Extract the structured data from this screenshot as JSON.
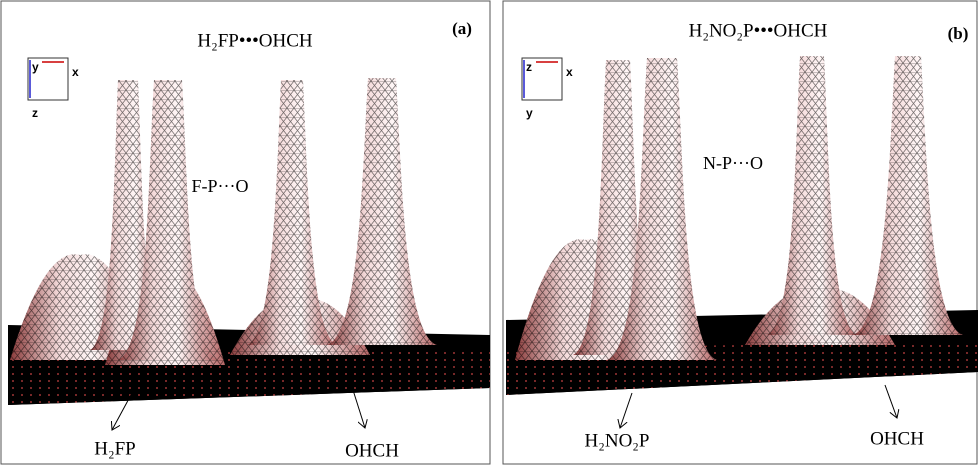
{
  "panels": [
    {
      "title": "H₂FP•••OHCH",
      "label": "(a)",
      "interaction": "F-P···O",
      "axes": [
        "y",
        "x",
        "z"
      ],
      "fragments": [
        "H₂FP",
        "OHCH"
      ]
    },
    {
      "title": "H₂NO₂P•••OHCH",
      "label": "(b)",
      "interaction": "N-P···O",
      "axes": [
        "z",
        "x",
        "y"
      ],
      "fragments": [
        "H₂NO₂P",
        "OHCH"
      ]
    }
  ]
}
